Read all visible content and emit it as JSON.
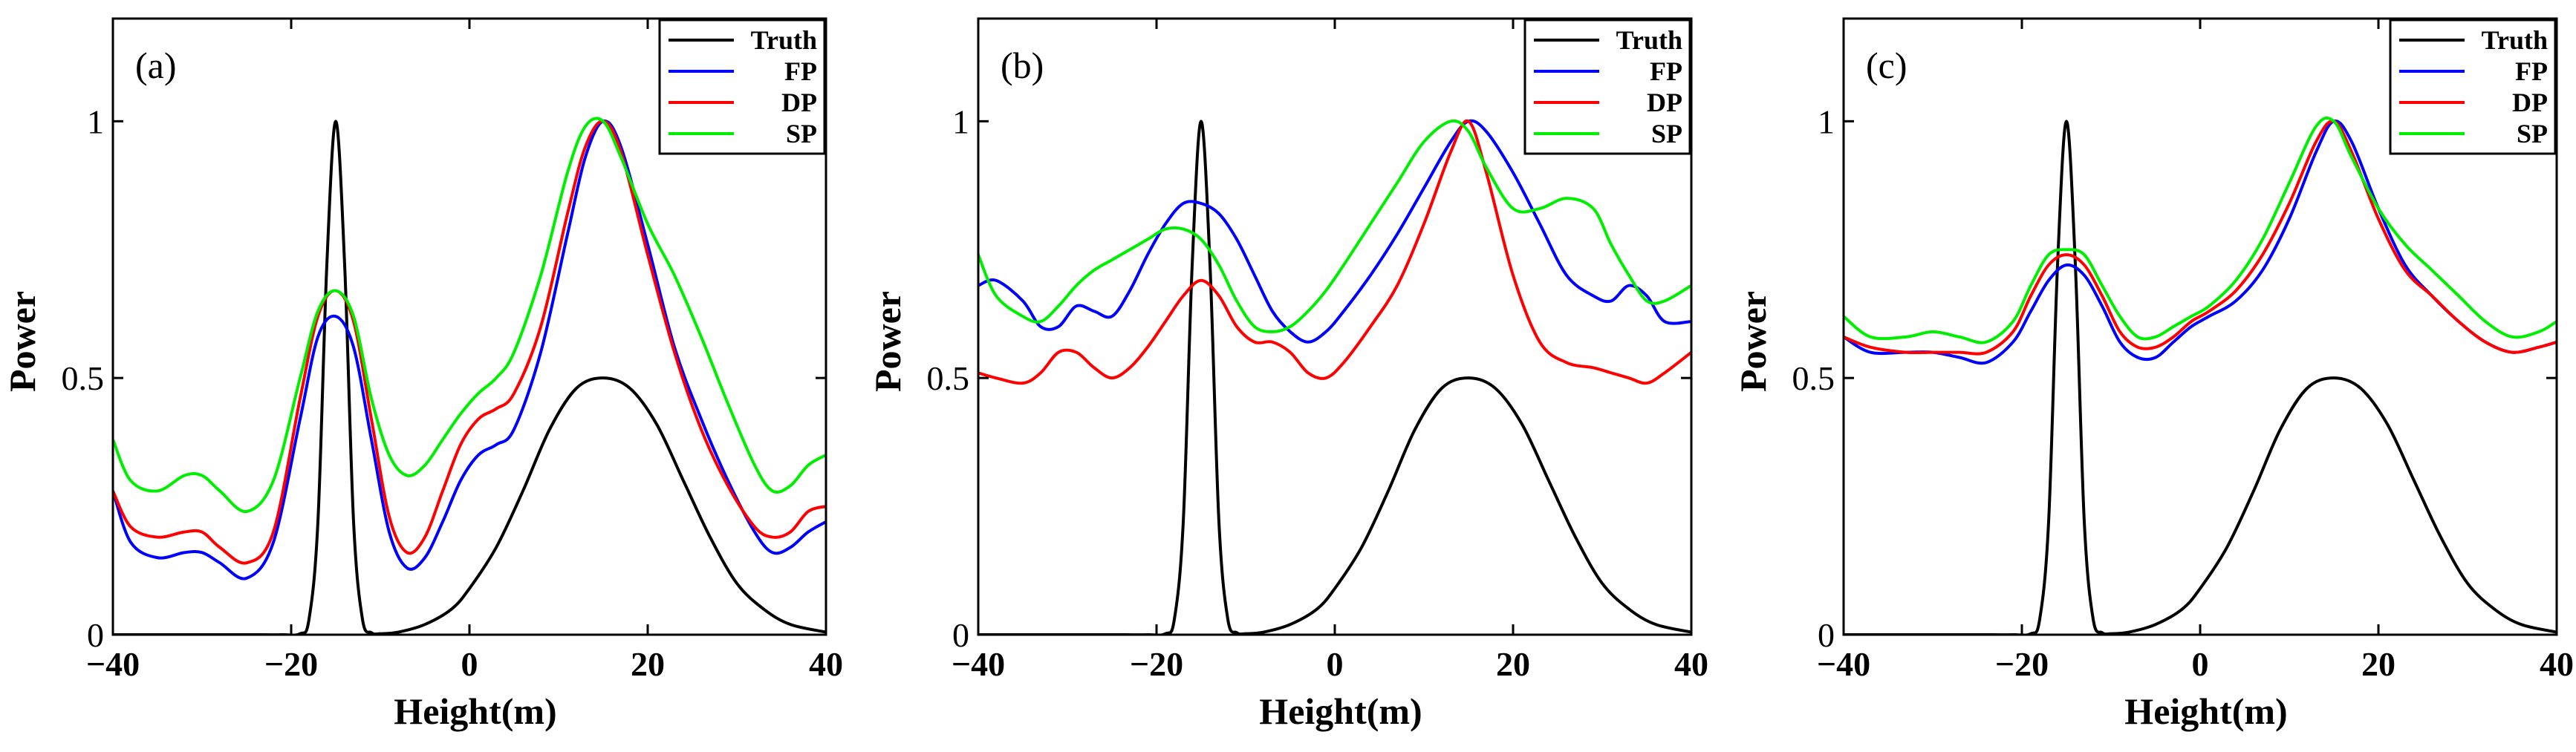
{
  "chart_data": [
    {
      "type": "line",
      "panel_label": "(a)",
      "xlabel": "Height(m)",
      "ylabel": "Power",
      "xlim": [
        -40,
        40
      ],
      "ylim": [
        0,
        1.2
      ],
      "xticks": [
        -40,
        -20,
        0,
        20,
        40
      ],
      "yticks": [
        0,
        0.5,
        1
      ],
      "xtick_labels": [
        "−40",
        "−20",
        "0",
        "20",
        "40"
      ],
      "ytick_labels": [
        "0",
        "0.5",
        "1"
      ],
      "legend": [
        "Truth",
        "FP",
        "DP",
        "SP"
      ],
      "series": [
        {
          "name": "Truth",
          "color": "#000000",
          "x": [
            -40,
            -35,
            -30,
            -25,
            -21,
            -19,
            -18,
            -17,
            -16,
            -15,
            -14,
            -13,
            -12,
            -11,
            -10,
            -8,
            -5,
            -2,
            0,
            3,
            6,
            9,
            12,
            15,
            18,
            21,
            24,
            27,
            30,
            33,
            36,
            40
          ],
          "y": [
            0,
            0,
            0,
            0,
            0,
            0.002,
            0.03,
            0.22,
            0.72,
            1.0,
            0.72,
            0.22,
            0.03,
            0.004,
            0.002,
            0.005,
            0.02,
            0.05,
            0.09,
            0.17,
            0.28,
            0.4,
            0.48,
            0.5,
            0.48,
            0.41,
            0.3,
            0.19,
            0.1,
            0.05,
            0.02,
            0.005
          ]
        },
        {
          "name": "FP",
          "color": "#0000ff",
          "x": [
            -40,
            -38,
            -35,
            -32,
            -30,
            -28,
            -25,
            -22,
            -19,
            -17,
            -15,
            -13,
            -11,
            -9,
            -7,
            -5,
            -3,
            -1,
            1,
            3,
            5,
            8,
            11,
            13,
            15,
            17,
            20,
            23,
            26,
            29,
            32,
            34,
            36,
            38,
            40
          ],
          "y": [
            0.28,
            0.18,
            0.15,
            0.16,
            0.16,
            0.14,
            0.11,
            0.18,
            0.42,
            0.58,
            0.62,
            0.56,
            0.38,
            0.2,
            0.13,
            0.15,
            0.22,
            0.3,
            0.35,
            0.37,
            0.4,
            0.55,
            0.78,
            0.93,
            1.0,
            0.95,
            0.76,
            0.56,
            0.42,
            0.3,
            0.2,
            0.16,
            0.17,
            0.2,
            0.22
          ]
        },
        {
          "name": "DP",
          "color": "#ff0000",
          "x": [
            -40,
            -38,
            -35,
            -32,
            -30,
            -28,
            -25,
            -22,
            -19,
            -17,
            -15,
            -13,
            -11,
            -9,
            -7,
            -5,
            -3,
            -1,
            1,
            3,
            5,
            8,
            11,
            13,
            15,
            17,
            20,
            23,
            26,
            29,
            32,
            34,
            36,
            38,
            40
          ],
          "y": [
            0.28,
            0.21,
            0.19,
            0.2,
            0.2,
            0.17,
            0.14,
            0.2,
            0.46,
            0.62,
            0.67,
            0.61,
            0.42,
            0.23,
            0.16,
            0.19,
            0.28,
            0.37,
            0.42,
            0.44,
            0.47,
            0.6,
            0.82,
            0.95,
            1.0,
            0.94,
            0.74,
            0.55,
            0.4,
            0.29,
            0.21,
            0.19,
            0.2,
            0.24,
            0.25
          ]
        },
        {
          "name": "SP",
          "color": "#00ee00",
          "x": [
            -40,
            -38,
            -35,
            -32,
            -30,
            -28,
            -25,
            -22,
            -19,
            -17,
            -15,
            -13,
            -11,
            -9,
            -7,
            -5,
            -3,
            -1,
            1,
            3,
            5,
            8,
            11,
            13,
            15,
            17,
            20,
            23,
            26,
            29,
            32,
            34,
            36,
            38,
            40
          ],
          "y": [
            0.38,
            0.3,
            0.28,
            0.31,
            0.31,
            0.28,
            0.24,
            0.3,
            0.5,
            0.63,
            0.67,
            0.62,
            0.46,
            0.35,
            0.31,
            0.33,
            0.38,
            0.43,
            0.47,
            0.5,
            0.55,
            0.7,
            0.9,
            0.99,
            1.0,
            0.93,
            0.8,
            0.7,
            0.58,
            0.45,
            0.33,
            0.28,
            0.29,
            0.33,
            0.35
          ]
        }
      ]
    },
    {
      "type": "line",
      "panel_label": "(b)",
      "xlabel": "Height(m)",
      "ylabel": "Power",
      "xlim": [
        -40,
        40
      ],
      "ylim": [
        0,
        1.2
      ],
      "xticks": [
        -40,
        -20,
        0,
        20,
        40
      ],
      "yticks": [
        0,
        0.5,
        1
      ],
      "xtick_labels": [
        "−40",
        "−20",
        "0",
        "20",
        "40"
      ],
      "ytick_labels": [
        "0",
        "0.5",
        "1"
      ],
      "legend": [
        "Truth",
        "FP",
        "DP",
        "SP"
      ],
      "series": [
        {
          "name": "Truth",
          "color": "#000000",
          "x": [
            -40,
            -35,
            -30,
            -25,
            -21,
            -19,
            -18,
            -17,
            -16,
            -15,
            -14,
            -13,
            -12,
            -11,
            -10,
            -8,
            -5,
            -2,
            0,
            3,
            6,
            9,
            12,
            15,
            18,
            21,
            24,
            27,
            30,
            33,
            36,
            40
          ],
          "y": [
            0,
            0,
            0,
            0,
            0,
            0.002,
            0.03,
            0.22,
            0.72,
            1.0,
            0.72,
            0.22,
            0.03,
            0.004,
            0.002,
            0.005,
            0.02,
            0.05,
            0.09,
            0.17,
            0.28,
            0.4,
            0.48,
            0.5,
            0.48,
            0.41,
            0.3,
            0.19,
            0.1,
            0.05,
            0.02,
            0.005
          ]
        },
        {
          "name": "FP",
          "color": "#0000ff",
          "x": [
            -40,
            -38,
            -35,
            -33,
            -31,
            -29,
            -27,
            -25,
            -23,
            -21,
            -19,
            -17,
            -15,
            -13,
            -11,
            -9,
            -7,
            -5,
            -3,
            -1,
            1,
            4,
            7,
            10,
            13,
            15,
            17,
            20,
            23,
            26,
            29,
            31,
            33,
            35,
            37,
            40
          ],
          "y": [
            0.68,
            0.69,
            0.65,
            0.6,
            0.6,
            0.64,
            0.63,
            0.62,
            0.67,
            0.74,
            0.8,
            0.84,
            0.84,
            0.82,
            0.77,
            0.7,
            0.63,
            0.59,
            0.57,
            0.59,
            0.63,
            0.7,
            0.78,
            0.87,
            0.96,
            1.0,
            0.98,
            0.9,
            0.8,
            0.7,
            0.66,
            0.65,
            0.68,
            0.66,
            0.61,
            0.61
          ]
        },
        {
          "name": "DP",
          "color": "#ff0000",
          "x": [
            -40,
            -38,
            -35,
            -33,
            -31,
            -29,
            -27,
            -25,
            -23,
            -21,
            -19,
            -17,
            -15,
            -13,
            -11,
            -9,
            -7,
            -5,
            -3,
            -1,
            1,
            4,
            7,
            10,
            13,
            15,
            17,
            20,
            23,
            26,
            29,
            31,
            33,
            35,
            37,
            40
          ],
          "y": [
            0.51,
            0.5,
            0.49,
            0.51,
            0.55,
            0.55,
            0.52,
            0.5,
            0.52,
            0.56,
            0.61,
            0.66,
            0.69,
            0.66,
            0.6,
            0.57,
            0.57,
            0.55,
            0.51,
            0.5,
            0.53,
            0.6,
            0.68,
            0.8,
            0.94,
            1.0,
            0.9,
            0.7,
            0.57,
            0.53,
            0.52,
            0.51,
            0.5,
            0.49,
            0.51,
            0.55
          ]
        },
        {
          "name": "SP",
          "color": "#00ee00",
          "x": [
            -40,
            -38,
            -35,
            -33,
            -31,
            -29,
            -27,
            -25,
            -23,
            -21,
            -19,
            -17,
            -15,
            -13,
            -11,
            -9,
            -7,
            -5,
            -3,
            -1,
            1,
            4,
            7,
            10,
            13,
            15,
            17,
            20,
            23,
            26,
            29,
            31,
            33,
            35,
            37,
            40
          ],
          "y": [
            0.74,
            0.66,
            0.62,
            0.61,
            0.64,
            0.68,
            0.71,
            0.73,
            0.75,
            0.77,
            0.79,
            0.79,
            0.77,
            0.72,
            0.65,
            0.6,
            0.59,
            0.6,
            0.63,
            0.67,
            0.72,
            0.8,
            0.88,
            0.96,
            1.0,
            0.98,
            0.91,
            0.83,
            0.83,
            0.85,
            0.83,
            0.76,
            0.7,
            0.65,
            0.65,
            0.68
          ]
        }
      ]
    },
    {
      "type": "line",
      "panel_label": "(c)",
      "xlabel": "Height(m)",
      "ylabel": "Power",
      "xlim": [
        -40,
        40
      ],
      "ylim": [
        0,
        1.2
      ],
      "xticks": [
        -40,
        -20,
        0,
        20,
        40
      ],
      "yticks": [
        0,
        0.5,
        1
      ],
      "xtick_labels": [
        "−40",
        "−20",
        "0",
        "20",
        "40"
      ],
      "ytick_labels": [
        "0",
        "0.5",
        "1"
      ],
      "legend": [
        "Truth",
        "FP",
        "DP",
        "SP"
      ],
      "series": [
        {
          "name": "Truth",
          "color": "#000000",
          "x": [
            -40,
            -35,
            -30,
            -25,
            -21,
            -19,
            -18,
            -17,
            -16,
            -15,
            -14,
            -13,
            -12,
            -11,
            -10,
            -8,
            -5,
            -2,
            0,
            3,
            6,
            9,
            12,
            15,
            18,
            21,
            24,
            27,
            30,
            33,
            36,
            40
          ],
          "y": [
            0,
            0,
            0,
            0,
            0,
            0.002,
            0.03,
            0.22,
            0.72,
            1.0,
            0.72,
            0.22,
            0.03,
            0.004,
            0.002,
            0.005,
            0.02,
            0.05,
            0.09,
            0.17,
            0.28,
            0.4,
            0.48,
            0.5,
            0.48,
            0.41,
            0.3,
            0.19,
            0.1,
            0.05,
            0.02,
            0.005
          ]
        },
        {
          "name": "FP",
          "color": "#0000ff",
          "x": [
            -40,
            -37,
            -33,
            -30,
            -27,
            -24,
            -21,
            -19,
            -17,
            -15,
            -13,
            -11,
            -9,
            -7,
            -5,
            -3,
            -1,
            1,
            4,
            7,
            10,
            13,
            15,
            17,
            20,
            23,
            26,
            29,
            32,
            35,
            38,
            40
          ],
          "y": [
            0.58,
            0.55,
            0.55,
            0.55,
            0.54,
            0.53,
            0.57,
            0.63,
            0.69,
            0.72,
            0.7,
            0.64,
            0.57,
            0.54,
            0.54,
            0.57,
            0.6,
            0.62,
            0.65,
            0.71,
            0.81,
            0.94,
            1.0,
            0.96,
            0.83,
            0.72,
            0.66,
            0.61,
            0.57,
            0.55,
            0.56,
            0.57
          ]
        },
        {
          "name": "DP",
          "color": "#ff0000",
          "x": [
            -40,
            -37,
            -33,
            -30,
            -27,
            -24,
            -21,
            -19,
            -17,
            -15,
            -13,
            -11,
            -9,
            -7,
            -5,
            -3,
            -1,
            1,
            4,
            7,
            10,
            13,
            15,
            17,
            20,
            23,
            26,
            29,
            32,
            35,
            38,
            40
          ],
          "y": [
            0.58,
            0.56,
            0.55,
            0.55,
            0.55,
            0.55,
            0.59,
            0.66,
            0.72,
            0.74,
            0.72,
            0.66,
            0.59,
            0.56,
            0.56,
            0.58,
            0.61,
            0.63,
            0.67,
            0.74,
            0.84,
            0.96,
            1.0,
            0.94,
            0.81,
            0.71,
            0.66,
            0.61,
            0.57,
            0.55,
            0.56,
            0.57
          ]
        },
        {
          "name": "SP",
          "color": "#00ee00",
          "x": [
            -40,
            -37,
            -33,
            -30,
            -27,
            -24,
            -21,
            -19,
            -17,
            -15,
            -13,
            -11,
            -9,
            -7,
            -5,
            -3,
            -1,
            1,
            4,
            7,
            10,
            13,
            15,
            17,
            20,
            23,
            26,
            29,
            32,
            35,
            38,
            40
          ],
          "y": [
            0.62,
            0.58,
            0.58,
            0.59,
            0.58,
            0.57,
            0.61,
            0.68,
            0.74,
            0.75,
            0.74,
            0.68,
            0.62,
            0.58,
            0.58,
            0.6,
            0.62,
            0.64,
            0.69,
            0.77,
            0.88,
            0.99,
            1.0,
            0.93,
            0.83,
            0.76,
            0.71,
            0.66,
            0.61,
            0.58,
            0.59,
            0.61
          ]
        }
      ]
    }
  ]
}
